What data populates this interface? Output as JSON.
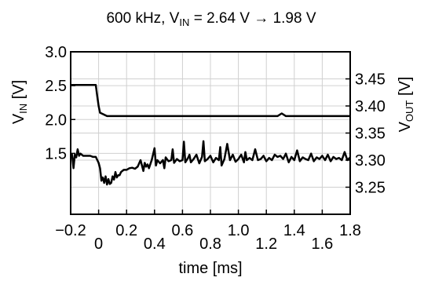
{
  "chart_data": {
    "type": "line",
    "title_parts": [
      "600 kHz, V",
      "IN",
      " = 2.64 V → 1.98 V"
    ],
    "xlabel": "time [ms]",
    "ylabel_left_parts": [
      "V",
      "IN",
      " [V]"
    ],
    "ylabel_right_parts": [
      "V",
      "OUT",
      " [V]"
    ],
    "xlim": [
      -0.2,
      1.8
    ],
    "ylim_left": [
      0.6,
      3.0
    ],
    "ylim_right": [
      3.2,
      3.5
    ],
    "x_ticks": [
      -0.2,
      0,
      0.2,
      0.4,
      0.6,
      0.8,
      1.0,
      1.2,
      1.4,
      1.6,
      1.8
    ],
    "x_tick_labels": [
      "−0.2",
      "0",
      "0.2",
      "0.4",
      "0.6",
      "0.8",
      "1.0",
      "1.2",
      "1.4",
      "1.6",
      "1.8"
    ],
    "y_ticks_left": [
      1.5,
      2.0,
      2.5,
      3.0
    ],
    "y_tick_labels_left": [
      "1.5",
      "2.0",
      "2.5",
      "3.0"
    ],
    "y_ticks_right": [
      3.25,
      3.3,
      3.35,
      3.4,
      3.45
    ],
    "y_tick_labels_right": [
      "3.25",
      "3.30",
      "3.35",
      "3.40",
      "3.45"
    ],
    "grid": true,
    "series": [
      {
        "axis": "left",
        "color": "#000000",
        "x": [
          -0.2,
          -0.02,
          -0.01,
          0.0,
          0.01,
          0.03,
          0.06,
          0.5,
          1.0,
          1.28,
          1.31,
          1.34,
          1.5,
          1.8
        ],
        "y": [
          2.51,
          2.51,
          2.35,
          2.2,
          2.1,
          2.08,
          2.05,
          2.05,
          2.05,
          2.05,
          2.09,
          2.05,
          2.05,
          2.05
        ]
      },
      {
        "axis": "right",
        "color": "#000000",
        "x": [
          -0.2,
          -0.19,
          -0.18,
          -0.17,
          -0.16,
          -0.15,
          -0.14,
          -0.13,
          -0.12,
          -0.11,
          -0.1,
          -0.08,
          -0.06,
          -0.04,
          -0.02,
          0.0,
          0.01,
          0.02,
          0.03,
          0.04,
          0.05,
          0.06,
          0.07,
          0.08,
          0.09,
          0.1,
          0.11,
          0.12,
          0.13,
          0.14,
          0.15,
          0.16,
          0.18,
          0.2,
          0.22,
          0.24,
          0.26,
          0.28,
          0.3,
          0.32,
          0.33,
          0.34,
          0.35,
          0.36,
          0.38,
          0.4,
          0.41,
          0.42,
          0.44,
          0.46,
          0.47,
          0.48,
          0.5,
          0.52,
          0.53,
          0.54,
          0.56,
          0.58,
          0.6,
          0.61,
          0.62,
          0.64,
          0.65,
          0.66,
          0.68,
          0.7,
          0.72,
          0.74,
          0.75,
          0.76,
          0.78,
          0.8,
          0.82,
          0.84,
          0.86,
          0.87,
          0.88,
          0.9,
          0.92,
          0.94,
          0.96,
          0.98,
          1.0,
          1.02,
          1.04,
          1.05,
          1.06,
          1.08,
          1.1,
          1.12,
          1.14,
          1.16,
          1.18,
          1.2,
          1.22,
          1.24,
          1.26,
          1.28,
          1.3,
          1.32,
          1.34,
          1.36,
          1.38,
          1.4,
          1.42,
          1.44,
          1.46,
          1.48,
          1.5,
          1.52,
          1.54,
          1.56,
          1.58,
          1.6,
          1.62,
          1.64,
          1.66,
          1.68,
          1.7,
          1.72,
          1.74,
          1.76,
          1.78,
          1.8
        ],
        "y": [
          3.305,
          3.31,
          3.285,
          3.31,
          3.305,
          3.32,
          3.308,
          3.312,
          3.31,
          3.308,
          3.308,
          3.308,
          3.308,
          3.306,
          3.306,
          3.295,
          3.285,
          3.262,
          3.268,
          3.258,
          3.27,
          3.255,
          3.265,
          3.256,
          3.258,
          3.27,
          3.264,
          3.278,
          3.268,
          3.272,
          3.272,
          3.278,
          3.282,
          3.282,
          3.285,
          3.286,
          3.284,
          3.288,
          3.3,
          3.28,
          3.295,
          3.288,
          3.292,
          3.285,
          3.3,
          3.322,
          3.29,
          3.3,
          3.294,
          3.3,
          3.285,
          3.305,
          3.298,
          3.3,
          3.32,
          3.295,
          3.302,
          3.298,
          3.3,
          3.334,
          3.296,
          3.304,
          3.31,
          3.296,
          3.302,
          3.31,
          3.294,
          3.306,
          3.335,
          3.298,
          3.302,
          3.308,
          3.296,
          3.304,
          3.3,
          3.324,
          3.29,
          3.302,
          3.33,
          3.3,
          3.31,
          3.297,
          3.302,
          3.31,
          3.296,
          3.315,
          3.3,
          3.304,
          3.3,
          3.32,
          3.3,
          3.302,
          3.308,
          3.298,
          3.304,
          3.3,
          3.31,
          3.306,
          3.308,
          3.302,
          3.312,
          3.296,
          3.306,
          3.3,
          3.318,
          3.298,
          3.305,
          3.302,
          3.3,
          3.312,
          3.298,
          3.305,
          3.302,
          3.308,
          3.3,
          3.31,
          3.298,
          3.306,
          3.302,
          3.304,
          3.3,
          3.315,
          3.3,
          3.305
        ]
      }
    ]
  }
}
